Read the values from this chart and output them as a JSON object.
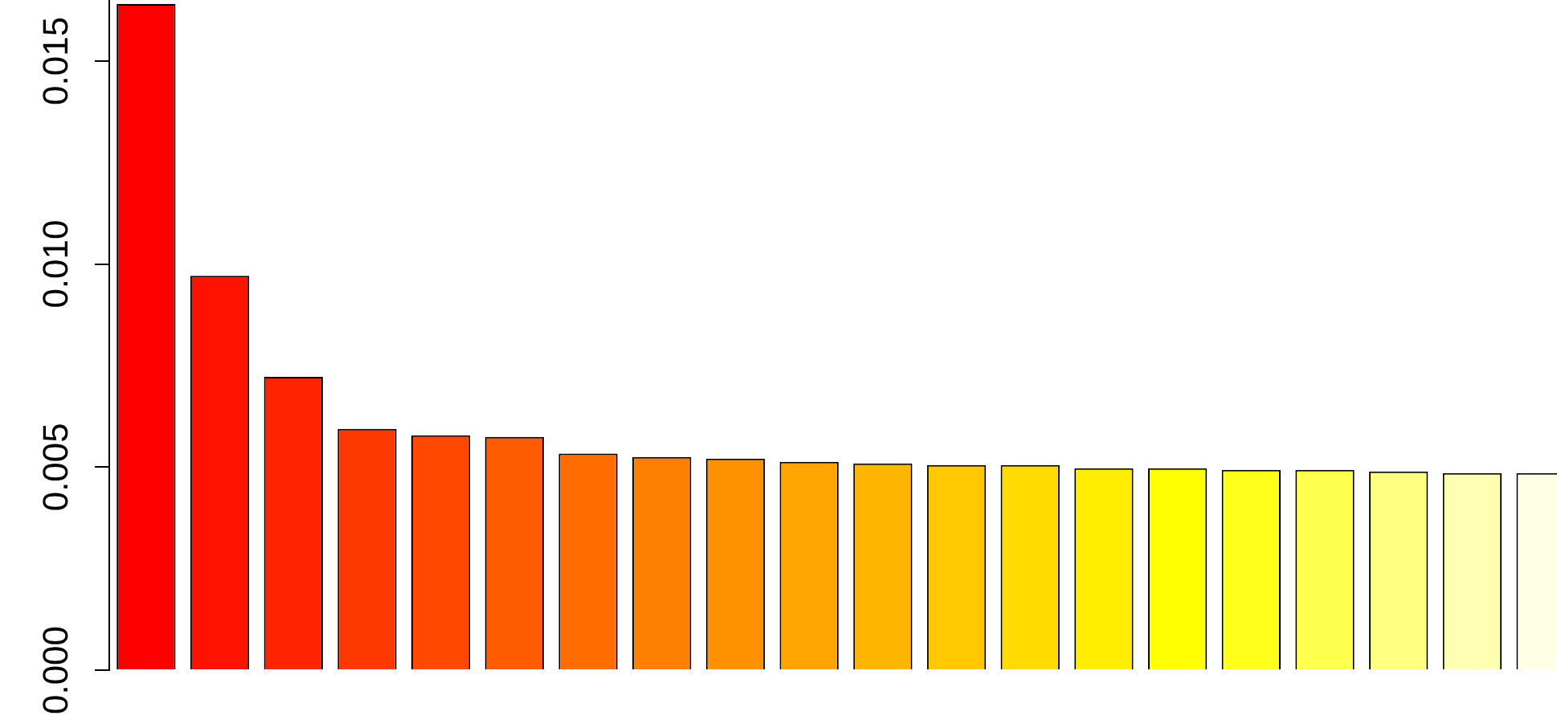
{
  "chart_data": {
    "type": "bar",
    "categories": [
      null,
      null,
      null,
      null,
      null,
      null,
      null,
      null,
      null,
      null,
      null,
      null,
      null,
      null,
      null,
      null,
      null,
      null,
      null,
      null
    ],
    "values": [
      0.0164,
      0.00971,
      0.00722,
      0.00594,
      0.00578,
      0.00574,
      0.00533,
      0.00525,
      0.00521,
      0.00513,
      0.00509,
      0.00505,
      0.00505,
      0.00497,
      0.00497,
      0.00493,
      0.00493,
      0.00489,
      0.00485,
      0.00485
    ],
    "colors": [
      "#ff0000",
      "#ff1200",
      "#ff2400",
      "#ff3700",
      "#ff4900",
      "#ff5b00",
      "#ff6d00",
      "#ff8000",
      "#ff9200",
      "#ffa400",
      "#ffb600",
      "#ffc800",
      "#ffdb00",
      "#ffed00",
      "#ffff00",
      "#ffff1a",
      "#ffff4d",
      "#ffff80",
      "#ffffb3",
      "#ffffe6"
    ],
    "ylim": [
      0,
      0.0165
    ],
    "yticks": [
      {
        "value": 0,
        "label": "0.000"
      },
      {
        "value": 0.005,
        "label": "0.005"
      },
      {
        "value": 0.01,
        "label": "0.010"
      },
      {
        "value": 0.015,
        "label": "0.015"
      }
    ],
    "grid": false,
    "legend": false,
    "tick_labels": "y"
  }
}
